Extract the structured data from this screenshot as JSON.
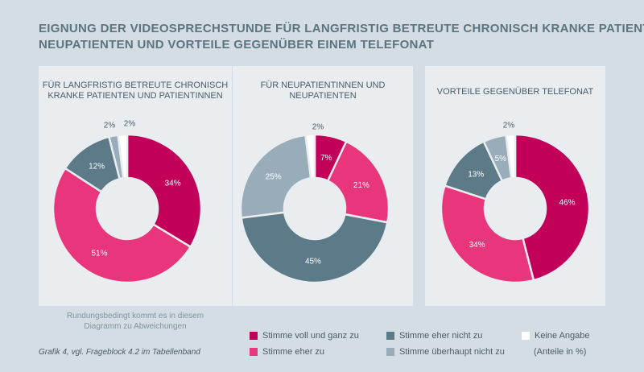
{
  "title": {
    "line1": "EIGNUNG DER VIDEOSPRECHSTUNDE FÜR LANGFRISTIG BETREUTE CHRONISCH KRANKE PATIENTEN,",
    "line2": "NEUPATIENTEN UND VORTEILE GEGENÜBER EINEM TELEFONAT"
  },
  "colors": {
    "stimme_voll": "#c2005a",
    "stimme_eher": "#e8357b",
    "eher_nicht": "#5c7a87",
    "ueberhaupt_nicht": "#98adb9",
    "keine_angabe": "#ffffff"
  },
  "chart_data": [
    {
      "type": "pie",
      "title_line1": "FÜR LANGFRISTIG BETREUTE CHRONISCH",
      "title_line2": "KRANKE PATIENTEN UND PATIENTINNEN",
      "categories": [
        "Stimme voll und ganz zu",
        "Stimme eher zu",
        "Stimme eher nicht zu",
        "Stimme überhaupt nicht zu",
        "Keine Angabe"
      ],
      "values": [
        34,
        51,
        12,
        2,
        2
      ],
      "labels": [
        "34%",
        "51%",
        "12%",
        "2%",
        "2%"
      ]
    },
    {
      "type": "pie",
      "title_line1": "FÜR NEUPATIENTINNEN UND",
      "title_line2": "NEUPATIENTEN",
      "categories": [
        "Stimme voll und ganz zu",
        "Stimme eher zu",
        "Stimme eher nicht zu",
        "Stimme überhaupt nicht zu",
        "Keine Angabe"
      ],
      "values": [
        7,
        21,
        45,
        25,
        2
      ],
      "labels": [
        "7%",
        "21%",
        "45%",
        "25%",
        "2%"
      ]
    },
    {
      "type": "pie",
      "title_line1": "VORTEILE GEGENÜBER TELEFONAT",
      "title_line2": "",
      "categories": [
        "Stimme voll und ganz zu",
        "Stimme eher zu",
        "Stimme eher nicht zu",
        "Stimme überhaupt nicht zu",
        "Keine Angabe"
      ],
      "values": [
        46,
        34,
        13,
        5,
        2
      ],
      "labels": [
        "46%",
        "34%",
        "13%",
        "5%",
        "2%"
      ]
    }
  ],
  "note": {
    "line1": "Rundungsbedingt kommt es in diesem",
    "line2": "Diagramm zu Abweichungen"
  },
  "source": "Grafik 4, vgl. Frageblock 4.2 im Tabellenband",
  "legend": {
    "items": [
      "Stimme voll und ganz zu",
      "Stimme eher zu",
      "Stimme eher nicht zu",
      "Stimme überhaupt nicht zu",
      "Keine Angabe"
    ],
    "unit": "(Anteile in %)"
  }
}
